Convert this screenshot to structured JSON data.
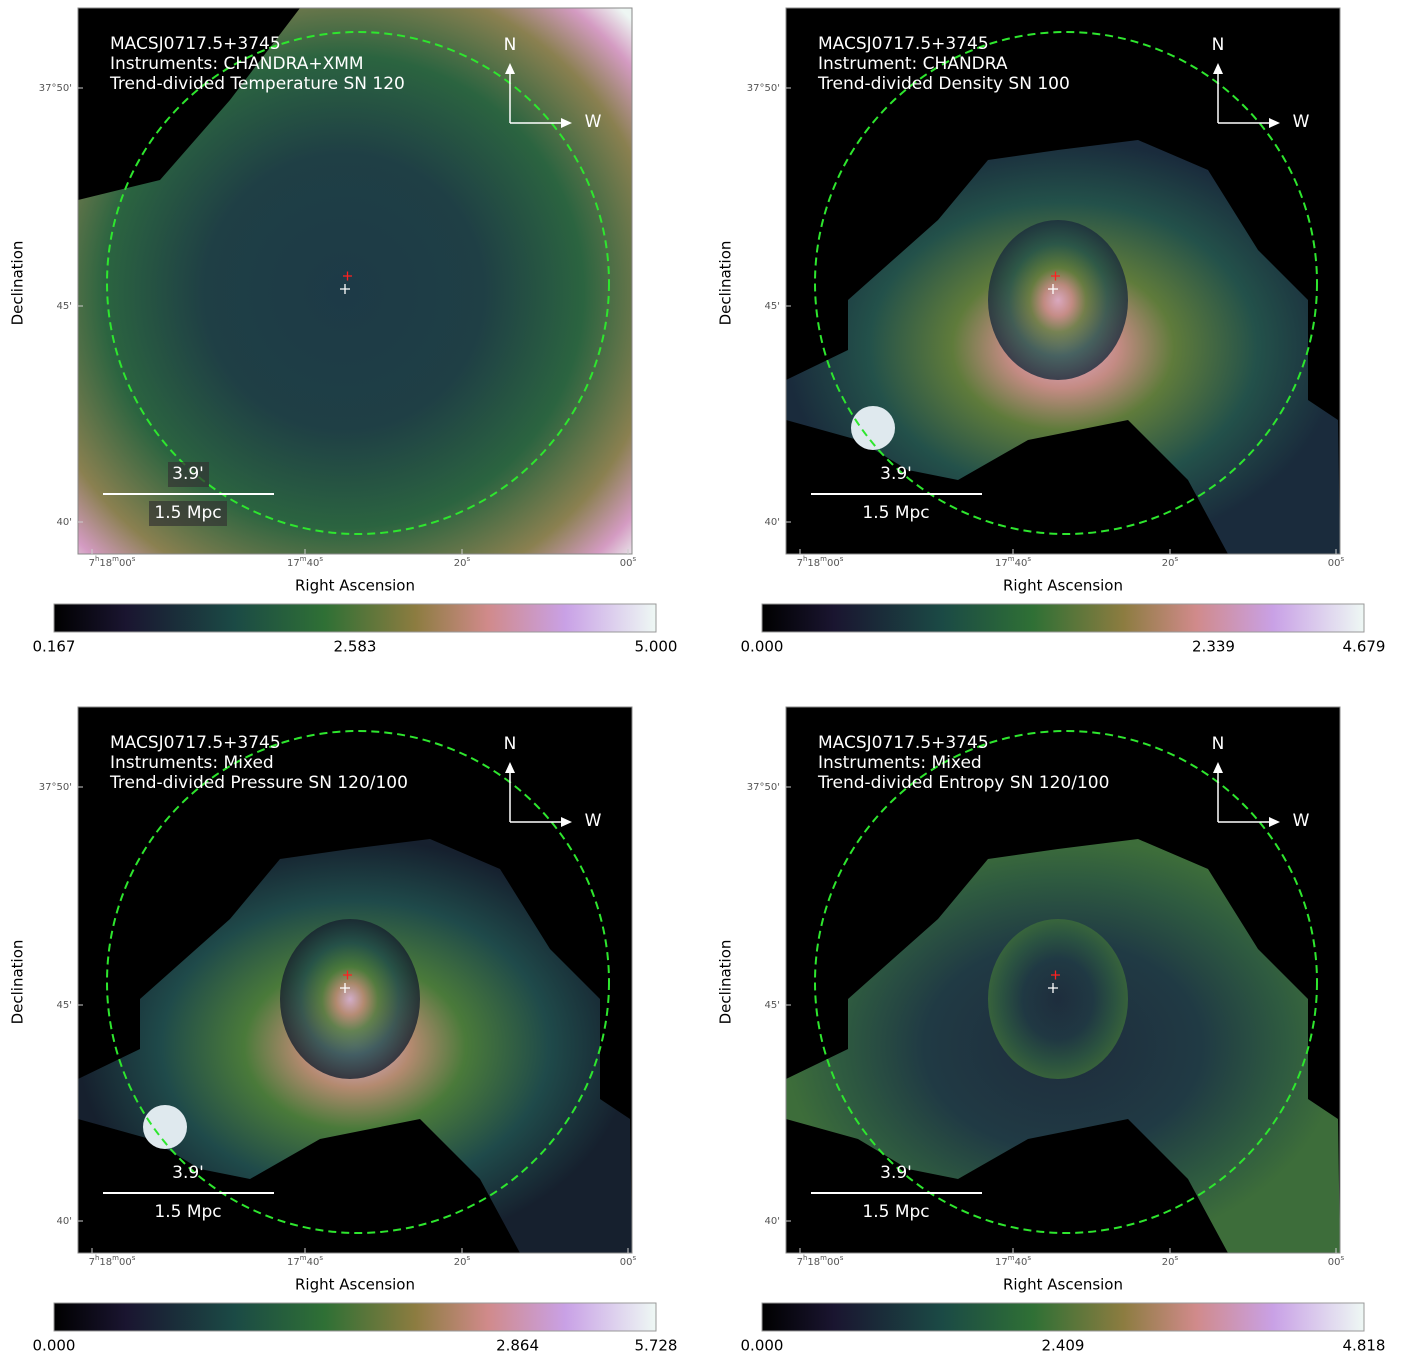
{
  "panels": [
    {
      "title_lines": [
        "MACSJ0717.5+3745",
        "Instruments: CHANDRA+XMM",
        "Trend-divided Temperature SN 120"
      ],
      "compass": {
        "north": "N",
        "west": "W"
      },
      "scale": {
        "angle": "3.9'",
        "distance": "1.5 Mpc"
      },
      "x_axis": {
        "label": "Right Ascension",
        "ticks": [
          "7h18m00s",
          "17m40s",
          "20s",
          "00s"
        ]
      },
      "y_axis": {
        "label": "Declination",
        "ticks": [
          "37°50'",
          "45'",
          "40'"
        ]
      },
      "colorbar": {
        "ticks": [
          "0.167",
          "2.583",
          "5.000"
        ]
      }
    },
    {
      "title_lines": [
        "MACSJ0717.5+3745",
        "Instrument: CHANDRA",
        "Trend-divided Density SN 100"
      ],
      "compass": {
        "north": "N",
        "west": "W"
      },
      "scale": {
        "angle": "3.9'",
        "distance": "1.5 Mpc"
      },
      "x_axis": {
        "label": "Right Ascension",
        "ticks": [
          "7h18m00s",
          "17m40s",
          "20s",
          "00s"
        ]
      },
      "y_axis": {
        "label": "Declination",
        "ticks": [
          "37°50'",
          "45'",
          "40'"
        ]
      },
      "colorbar": {
        "ticks": [
          "0.000",
          "2.339",
          "4.679"
        ]
      }
    },
    {
      "title_lines": [
        "MACSJ0717.5+3745",
        "Instruments: Mixed",
        "Trend-divided Pressure SN 120/100"
      ],
      "compass": {
        "north": "N",
        "west": "W"
      },
      "scale": {
        "angle": "3.9'",
        "distance": "1.5 Mpc"
      },
      "x_axis": {
        "label": "Right Ascension",
        "ticks": [
          "7h18m00s",
          "17m40s",
          "20s",
          "00s"
        ]
      },
      "y_axis": {
        "label": "Declination",
        "ticks": [
          "37°50'",
          "45'",
          "40'"
        ]
      },
      "colorbar": {
        "ticks": [
          "0.000",
          "2.864",
          "5.728"
        ]
      }
    },
    {
      "title_lines": [
        "MACSJ0717.5+3745",
        "Instruments: Mixed",
        "Trend-divided Entropy SN 120/100"
      ],
      "compass": {
        "north": "N",
        "west": "W"
      },
      "scale": {
        "angle": "3.9'",
        "distance": "1.5 Mpc"
      },
      "x_axis": {
        "label": "Right Ascension",
        "ticks": [
          "7h18m00s",
          "17m40s",
          "20s",
          "00s"
        ]
      },
      "y_axis": {
        "label": "Declination",
        "ticks": [
          "37°50'",
          "45'",
          "40'"
        ]
      },
      "colorbar": {
        "ticks": [
          "0.000",
          "2.409",
          "4.818"
        ]
      }
    }
  ]
}
